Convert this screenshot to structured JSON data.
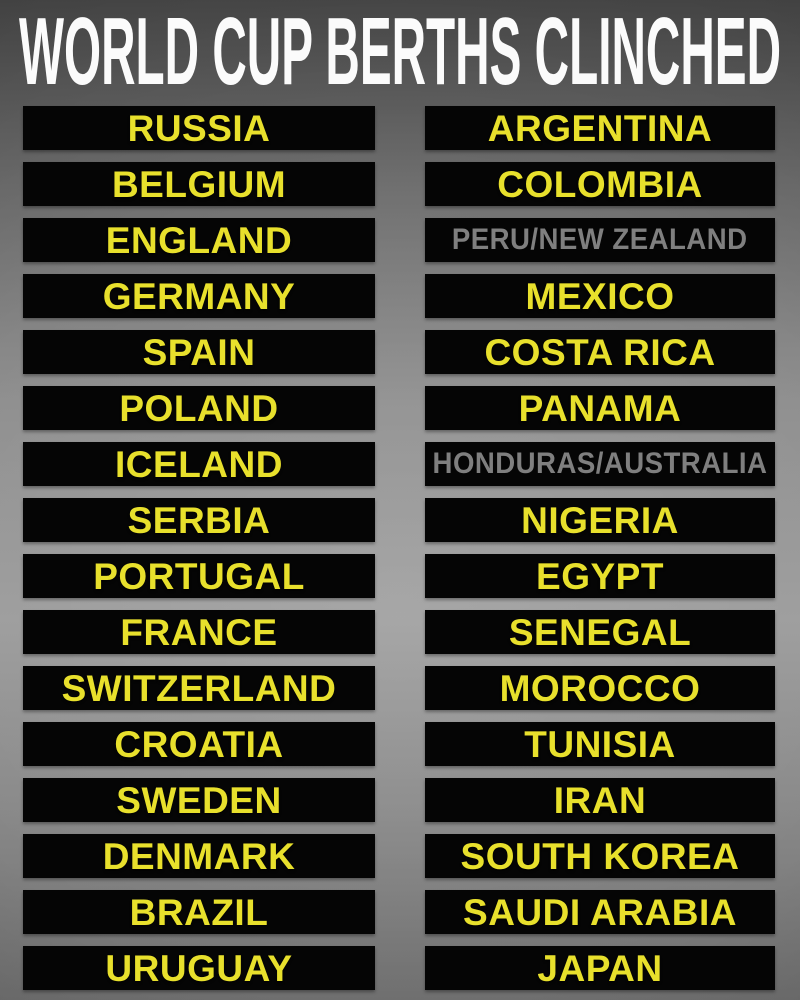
{
  "header": {
    "title": "WORLD CUP BERTHS CLINCHED"
  },
  "teams": {
    "left": [
      {
        "label": "RUSSIA",
        "status": "clinched"
      },
      {
        "label": "BELGIUM",
        "status": "clinched"
      },
      {
        "label": "ENGLAND",
        "status": "clinched"
      },
      {
        "label": "GERMANY",
        "status": "clinched"
      },
      {
        "label": "SPAIN",
        "status": "clinched"
      },
      {
        "label": "POLAND",
        "status": "clinched"
      },
      {
        "label": "ICELAND",
        "status": "clinched"
      },
      {
        "label": "SERBIA",
        "status": "clinched"
      },
      {
        "label": "PORTUGAL",
        "status": "clinched"
      },
      {
        "label": "FRANCE",
        "status": "clinched"
      },
      {
        "label": "SWITZERLAND",
        "status": "clinched"
      },
      {
        "label": "CROATIA",
        "status": "clinched"
      },
      {
        "label": "SWEDEN",
        "status": "clinched"
      },
      {
        "label": "DENMARK",
        "status": "clinched"
      },
      {
        "label": "BRAZIL",
        "status": "clinched"
      },
      {
        "label": "URUGUAY",
        "status": "clinched"
      }
    ],
    "right": [
      {
        "label": "ARGENTINA",
        "status": "clinched"
      },
      {
        "label": "COLOMBIA",
        "status": "clinched"
      },
      {
        "label": "PERU/NEW ZEALAND",
        "status": "playoff"
      },
      {
        "label": "MEXICO",
        "status": "clinched"
      },
      {
        "label": "COSTA RICA",
        "status": "clinched"
      },
      {
        "label": "PANAMA",
        "status": "clinched"
      },
      {
        "label": "HONDURAS/AUSTRALIA",
        "status": "playoff"
      },
      {
        "label": "NIGERIA",
        "status": "clinched"
      },
      {
        "label": "EGYPT",
        "status": "clinched"
      },
      {
        "label": "SENEGAL",
        "status": "clinched"
      },
      {
        "label": "MOROCCO",
        "status": "clinched"
      },
      {
        "label": "TUNISIA",
        "status": "clinched"
      },
      {
        "label": "IRAN",
        "status": "clinched"
      },
      {
        "label": "SOUTH KOREA",
        "status": "clinched"
      },
      {
        "label": "SAUDI ARABIA",
        "status": "clinched"
      },
      {
        "label": "JAPAN",
        "status": "clinched"
      }
    ]
  },
  "colors": {
    "clinched_text": "#e8e02c",
    "playoff_text": "#7f7f7f",
    "bar_background": "#050505",
    "title_text": "#fbfbfb",
    "background_mid": "#9d9d9d",
    "background_top": "#4e4e4e"
  }
}
